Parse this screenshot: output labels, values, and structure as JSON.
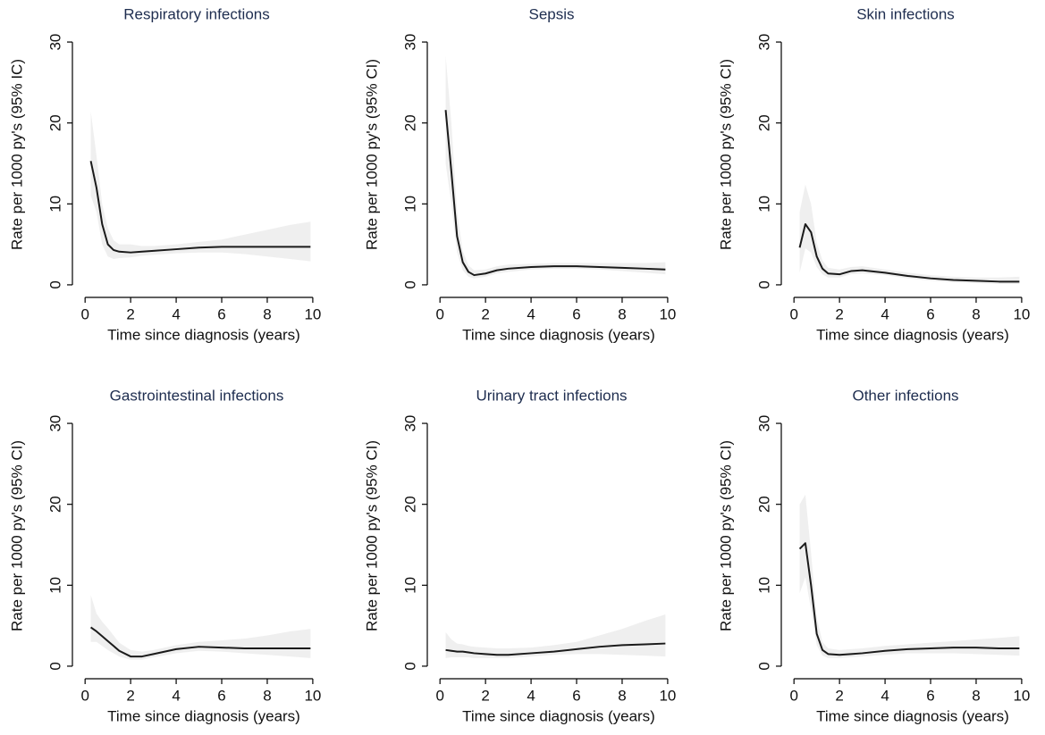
{
  "chart_data": [
    {
      "type": "line",
      "title": "Respiratory infections",
      "x_label": "Time since diagnosis (years)",
      "y_label": "Rate per 1000 py's (95% IC)",
      "x": [
        0.25,
        0.5,
        0.75,
        1,
        1.25,
        1.5,
        2,
        2.5,
        3,
        4,
        5,
        6,
        7,
        8,
        9,
        9.9
      ],
      "series": [
        {
          "color": "#1a1a1a",
          "band_color": "#efefef",
          "values": [
            15.3,
            12,
            7.5,
            5,
            4.3,
            4.1,
            4,
            4.1,
            4.2,
            4.4,
            4.6,
            4.7,
            4.7,
            4.7,
            4.7,
            4.7
          ],
          "lower": [
            11,
            9,
            5,
            3.5,
            3.2,
            3.3,
            3.4,
            3.6,
            3.7,
            3.9,
            4.0,
            4.0,
            3.8,
            3.5,
            3.2,
            2.9
          ],
          "upper": [
            21.4,
            16,
            10,
            7,
            5.5,
            5,
            5,
            4.8,
            4.8,
            5,
            5.3,
            5.6,
            6.2,
            6.8,
            7.4,
            7.8
          ]
        }
      ],
      "xlim": [
        -0.4,
        10.2
      ],
      "ylim": [
        -1,
        31
      ],
      "xticks": [
        0,
        2,
        4,
        6,
        8,
        10
      ],
      "yticks": [
        0,
        10,
        20,
        30
      ]
    },
    {
      "type": "line",
      "title": "Sepsis",
      "x_label": "Time since diagnosis (years)",
      "y_label": "Rate per 1000 py's (95% CI)",
      "x": [
        0.25,
        0.5,
        0.75,
        1,
        1.25,
        1.5,
        2,
        2.5,
        3,
        4,
        5,
        6,
        7,
        8,
        9,
        9.9
      ],
      "series": [
        {
          "color": "#1a1a1a",
          "band_color": "#efefef",
          "values": [
            21.6,
            14,
            6,
            2.8,
            1.6,
            1.2,
            1.4,
            1.8,
            2.0,
            2.2,
            2.3,
            2.3,
            2.2,
            2.1,
            2.0,
            1.9
          ],
          "lower": [
            15,
            10,
            4,
            1.8,
            1.0,
            0.8,
            1.0,
            1.4,
            1.6,
            1.9,
            2.0,
            2.0,
            1.9,
            1.7,
            1.5,
            1.3
          ],
          "upper": [
            28.3,
            20,
            9,
            4.2,
            2.4,
            1.8,
            1.9,
            2.3,
            2.5,
            2.6,
            2.7,
            2.7,
            2.7,
            2.7,
            2.7,
            2.8
          ]
        }
      ],
      "xlim": [
        -0.4,
        10.2
      ],
      "ylim": [
        -1,
        31
      ],
      "xticks": [
        0,
        2,
        4,
        6,
        8,
        10
      ],
      "yticks": [
        0,
        10,
        20,
        30
      ]
    },
    {
      "type": "line",
      "title": "Skin infections",
      "x_label": "Time since diagnosis (years)",
      "y_label": "Rate per 1000 py's (95% CI)",
      "x": [
        0.25,
        0.5,
        0.75,
        1,
        1.25,
        1.5,
        2,
        2.5,
        3,
        4,
        5,
        6,
        7,
        8,
        9,
        9.9
      ],
      "series": [
        {
          "color": "#1a1a1a",
          "band_color": "#efefef",
          "values": [
            4.6,
            7.5,
            6.5,
            3.5,
            2.0,
            1.4,
            1.3,
            1.7,
            1.8,
            1.5,
            1.1,
            0.8,
            0.6,
            0.5,
            0.4,
            0.4
          ],
          "lower": [
            1.5,
            4.5,
            4,
            2.2,
            1.3,
            0.9,
            0.9,
            1.3,
            1.4,
            1.2,
            0.8,
            0.5,
            0.3,
            0.2,
            0.1,
            0.1
          ],
          "upper": [
            9,
            12.4,
            10,
            5.2,
            3.0,
            2.1,
            1.9,
            2.2,
            2.3,
            1.9,
            1.5,
            1.2,
            1.0,
            0.9,
            0.9,
            1.0
          ]
        }
      ],
      "xlim": [
        -0.4,
        10.2
      ],
      "ylim": [
        -1,
        31
      ],
      "xticks": [
        0,
        2,
        4,
        6,
        8,
        10
      ],
      "yticks": [
        0,
        10,
        20,
        30
      ]
    },
    {
      "type": "line",
      "title": "Gastrointestinal infections",
      "x_label": "Time since diagnosis (years)",
      "y_label": "Rate per 1000 py's (95% CI)",
      "x": [
        0.25,
        0.5,
        0.75,
        1,
        1.25,
        1.5,
        2,
        2.5,
        3,
        4,
        5,
        6,
        7,
        8,
        9,
        9.9
      ],
      "series": [
        {
          "color": "#1a1a1a",
          "band_color": "#efefef",
          "values": [
            4.8,
            4.3,
            3.7,
            3.1,
            2.5,
            1.9,
            1.2,
            1.2,
            1.5,
            2.1,
            2.4,
            2.3,
            2.2,
            2.2,
            2.2,
            2.2
          ],
          "lower": [
            3,
            3,
            2.5,
            2.0,
            1.6,
            1.2,
            0.8,
            0.8,
            1.1,
            1.6,
            1.9,
            1.8,
            1.6,
            1.4,
            1.2,
            1.0
          ],
          "upper": [
            8.8,
            6.5,
            5.5,
            4.7,
            3.8,
            2.9,
            2.0,
            1.8,
            2.0,
            2.6,
            3.0,
            3.2,
            3.4,
            3.8,
            4.3,
            4.6
          ]
        }
      ],
      "xlim": [
        -0.4,
        10.2
      ],
      "ylim": [
        -1,
        31
      ],
      "xticks": [
        0,
        2,
        4,
        6,
        8,
        10
      ],
      "yticks": [
        0,
        10,
        20,
        30
      ]
    },
    {
      "type": "line",
      "title": "Urinary tract infections",
      "x_label": "Time since diagnosis (years)",
      "y_label": "Rate per 1000 py's (95% CI)",
      "x": [
        0.25,
        0.5,
        0.75,
        1,
        1.25,
        1.5,
        2,
        2.5,
        3,
        4,
        5,
        6,
        7,
        8,
        9,
        9.9
      ],
      "series": [
        {
          "color": "#1a1a1a",
          "band_color": "#efefef",
          "values": [
            2.0,
            1.9,
            1.8,
            1.8,
            1.7,
            1.6,
            1.5,
            1.4,
            1.4,
            1.6,
            1.8,
            2.1,
            2.4,
            2.6,
            2.7,
            2.8
          ],
          "lower": [
            1.0,
            1.1,
            1.1,
            1.1,
            1.1,
            1.0,
            1.0,
            1.0,
            1.0,
            1.2,
            1.4,
            1.5,
            1.5,
            1.4,
            1.3,
            1.2
          ],
          "upper": [
            4.2,
            3.3,
            2.8,
            2.7,
            2.5,
            2.4,
            2.3,
            2.2,
            2.2,
            2.3,
            2.6,
            3.0,
            3.8,
            4.6,
            5.6,
            6.4
          ]
        }
      ],
      "xlim": [
        -0.4,
        10.2
      ],
      "ylim": [
        -1,
        31
      ],
      "xticks": [
        0,
        2,
        4,
        6,
        8,
        10
      ],
      "yticks": [
        0,
        10,
        20,
        30
      ]
    },
    {
      "type": "line",
      "title": "Other infections",
      "x_label": "Time since diagnosis (years)",
      "y_label": "Rate per 1000 py's (95% CI)",
      "x": [
        0.25,
        0.5,
        0.75,
        1,
        1.25,
        1.5,
        2,
        2.5,
        3,
        4,
        5,
        6,
        7,
        8,
        9,
        9.9
      ],
      "series": [
        {
          "color": "#1a1a1a",
          "band_color": "#efefef",
          "values": [
            14.5,
            15.2,
            10,
            4,
            2.0,
            1.5,
            1.4,
            1.5,
            1.6,
            1.9,
            2.1,
            2.2,
            2.3,
            2.3,
            2.2,
            2.2
          ],
          "lower": [
            9,
            11,
            7,
            2.6,
            1.3,
            1.0,
            1.0,
            1.1,
            1.2,
            1.4,
            1.6,
            1.6,
            1.6,
            1.5,
            1.4,
            1.3
          ],
          "upper": [
            20,
            21.2,
            14,
            6,
            3.0,
            2.2,
            2.0,
            2.1,
            2.2,
            2.5,
            2.7,
            2.9,
            3.1,
            3.3,
            3.5,
            3.7
          ]
        }
      ],
      "xlim": [
        -0.4,
        10.2
      ],
      "ylim": [
        -1,
        31
      ],
      "xticks": [
        0,
        2,
        4,
        6,
        8,
        10
      ],
      "yticks": [
        0,
        10,
        20,
        30
      ]
    }
  ]
}
